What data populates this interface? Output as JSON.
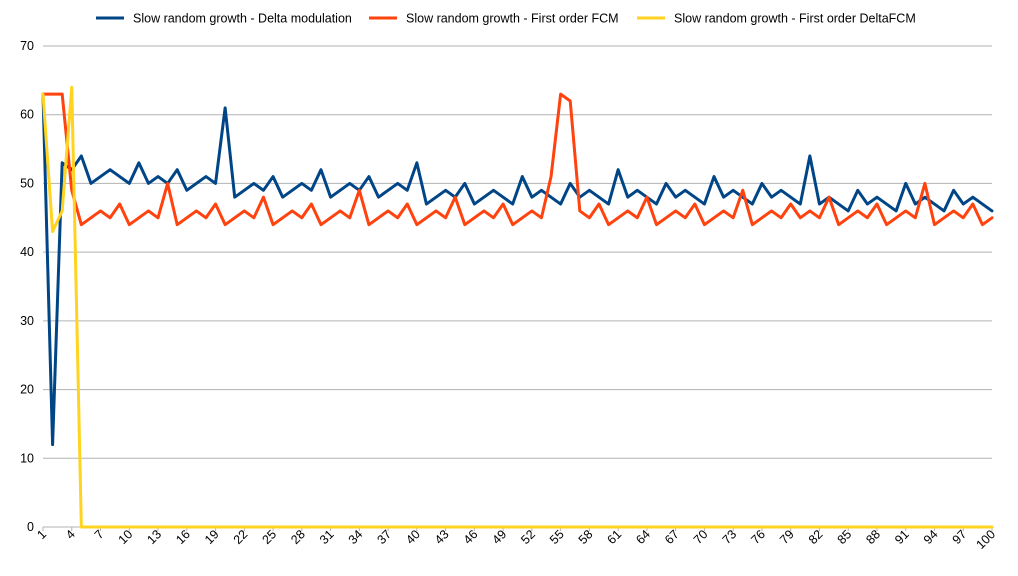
{
  "chart_data": {
    "type": "line",
    "title": "",
    "xlabel": "",
    "ylabel": "",
    "ylim": [
      0,
      70
    ],
    "yticks": [
      0,
      10,
      20,
      30,
      40,
      50,
      60,
      70
    ],
    "x_start": 1,
    "x_end": 100,
    "x_tick_labels": [
      "1",
      "4",
      "7",
      "10",
      "13",
      "16",
      "19",
      "22",
      "25",
      "28",
      "31",
      "34",
      "37",
      "40",
      "43",
      "46",
      "49",
      "52",
      "55",
      "58",
      "61",
      "64",
      "67",
      "70",
      "73",
      "76",
      "79",
      "82",
      "85",
      "88",
      "91",
      "94",
      "97",
      "100"
    ],
    "grid": "horizontal",
    "legend_position": "top",
    "series": [
      {
        "name": "Slow random growth - Delta modulation",
        "color": "#004586",
        "values": [
          63,
          12,
          53,
          52,
          54,
          50,
          51,
          52,
          51,
          50,
          53,
          50,
          51,
          50,
          52,
          49,
          50,
          51,
          50,
          61,
          48,
          49,
          50,
          49,
          51,
          48,
          49,
          50,
          49,
          52,
          48,
          49,
          50,
          49,
          51,
          48,
          49,
          50,
          49,
          53,
          47,
          48,
          49,
          48,
          50,
          47,
          48,
          49,
          48,
          47,
          51,
          48,
          49,
          48,
          47,
          50,
          48,
          49,
          48,
          47,
          52,
          48,
          49,
          48,
          47,
          50,
          48,
          49,
          48,
          47,
          51,
          48,
          49,
          48,
          47,
          50,
          48,
          49,
          48,
          47,
          54,
          47,
          48,
          47,
          46,
          49,
          47,
          48,
          47,
          46,
          50,
          47,
          48,
          47,
          46,
          49,
          47,
          48,
          47,
          46
        ]
      },
      {
        "name": "Slow random growth - First order FCM",
        "color": "#ff420e",
        "values": [
          63,
          63,
          63,
          49,
          44,
          45,
          46,
          45,
          47,
          44,
          45,
          46,
          45,
          50,
          44,
          45,
          46,
          45,
          47,
          44,
          45,
          46,
          45,
          48,
          44,
          45,
          46,
          45,
          47,
          44,
          45,
          46,
          45,
          49,
          44,
          45,
          46,
          45,
          47,
          44,
          45,
          46,
          45,
          48,
          44,
          45,
          46,
          45,
          47,
          44,
          45,
          46,
          45,
          51,
          63,
          62,
          46,
          45,
          47,
          44,
          45,
          46,
          45,
          48,
          44,
          45,
          46,
          45,
          47,
          44,
          45,
          46,
          45,
          49,
          44,
          45,
          46,
          45,
          47,
          45,
          46,
          45,
          48,
          44,
          45,
          46,
          45,
          47,
          44,
          45,
          46,
          45,
          50,
          44,
          45,
          46,
          45,
          47,
          44,
          45
        ]
      },
      {
        "name": "Slow random growth - First order DeltaFCM",
        "color": "#ffd320",
        "values": [
          63,
          43,
          46,
          64,
          0,
          0,
          0,
          0,
          0,
          0,
          0,
          0,
          0,
          0,
          0,
          0,
          0,
          0,
          0,
          0,
          0,
          0,
          0,
          0,
          0,
          0,
          0,
          0,
          0,
          0,
          0,
          0,
          0,
          0,
          0,
          0,
          0,
          0,
          0,
          0,
          0,
          0,
          0,
          0,
          0,
          0,
          0,
          0,
          0,
          0,
          0,
          0,
          0,
          0,
          0,
          0,
          0,
          0,
          0,
          0,
          0,
          0,
          0,
          0,
          0,
          0,
          0,
          0,
          0,
          0,
          0,
          0,
          0,
          0,
          0,
          0,
          0,
          0,
          0,
          0,
          0,
          0,
          0,
          0,
          0,
          0,
          0,
          0,
          0,
          0,
          0,
          0,
          0,
          0,
          0,
          0,
          0,
          0,
          0,
          0
        ]
      }
    ]
  }
}
